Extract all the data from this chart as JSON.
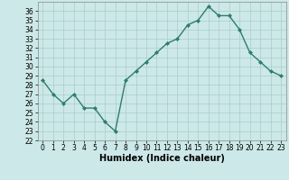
{
  "x": [
    0,
    1,
    2,
    3,
    4,
    5,
    6,
    7,
    8,
    9,
    10,
    11,
    12,
    13,
    14,
    15,
    16,
    17,
    18,
    19,
    20,
    21,
    22,
    23
  ],
  "y": [
    28.5,
    27.0,
    26.0,
    27.0,
    25.5,
    25.5,
    24.0,
    23.0,
    28.5,
    29.5,
    30.5,
    31.5,
    32.5,
    33.0,
    34.5,
    35.0,
    36.5,
    35.5,
    35.5,
    34.0,
    31.5,
    30.5,
    29.5,
    29.0
  ],
  "line_color": "#2e7d6e",
  "marker": "D",
  "marker_size": 2,
  "xlabel": "Humidex (Indice chaleur)",
  "ylim": [
    22,
    37
  ],
  "xlim": [
    -0.5,
    23.5
  ],
  "yticks": [
    22,
    23,
    24,
    25,
    26,
    27,
    28,
    29,
    30,
    31,
    32,
    33,
    34,
    35,
    36
  ],
  "xticks": [
    0,
    1,
    2,
    3,
    4,
    5,
    6,
    7,
    8,
    9,
    10,
    11,
    12,
    13,
    14,
    15,
    16,
    17,
    18,
    19,
    20,
    21,
    22,
    23
  ],
  "bg_color": "#cce8e8",
  "grid_color": "#aacccc",
  "tick_fontsize": 5.5,
  "xlabel_fontsize": 7
}
